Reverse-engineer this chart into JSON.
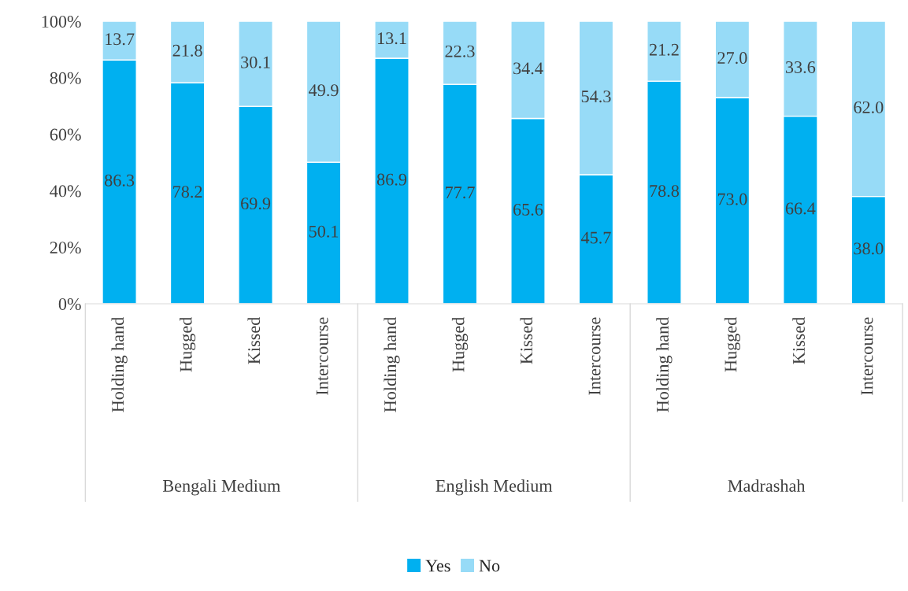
{
  "chart_data": {
    "type": "bar",
    "stacked": true,
    "categories": [
      "Holding hand",
      "Hugged",
      "Kissed",
      "Intercourse",
      "Holding hand",
      "Hugged",
      "Kissed",
      "Intercourse",
      "Holding hand",
      "Hugged",
      "Kissed",
      "Intercourse"
    ],
    "series": [
      {
        "name": "Yes",
        "color": "#00b0f0",
        "values": [
          86.3,
          78.2,
          69.9,
          50.1,
          86.9,
          77.7,
          65.6,
          45.7,
          78.8,
          73.0,
          66.4,
          38.0
        ],
        "value_labels": [
          "86.3",
          "78.2",
          "69.9",
          "50.1",
          "86.9",
          "77.7",
          "65.6",
          "45.7",
          "78.8",
          "73.0",
          "66.4",
          "38.0"
        ]
      },
      {
        "name": "No",
        "color": "#97dbf7",
        "values": [
          13.7,
          21.8,
          30.1,
          49.9,
          13.1,
          22.3,
          34.4,
          54.3,
          21.2,
          27.0,
          33.6,
          62.0
        ],
        "value_labels": [
          "13.7",
          "21.8",
          "30.1",
          "49.9",
          "13.1",
          "22.3",
          "34.4",
          "54.3",
          "21.2",
          "27.0",
          "33.6",
          "62.0"
        ]
      }
    ],
    "annotations": [
      "Bengali Medium",
      "English Medium",
      "Madrashah"
    ],
    "ylim": [
      0,
      100
    ],
    "yticks": [
      {
        "value": 0,
        "label": "0%"
      },
      {
        "value": 20,
        "label": "20%"
      },
      {
        "value": 40,
        "label": "40%"
      },
      {
        "value": 60,
        "label": "60%"
      },
      {
        "value": 80,
        "label": "80%"
      },
      {
        "value": 100,
        "label": "100%"
      }
    ],
    "legend": "bottom",
    "grid": false
  }
}
